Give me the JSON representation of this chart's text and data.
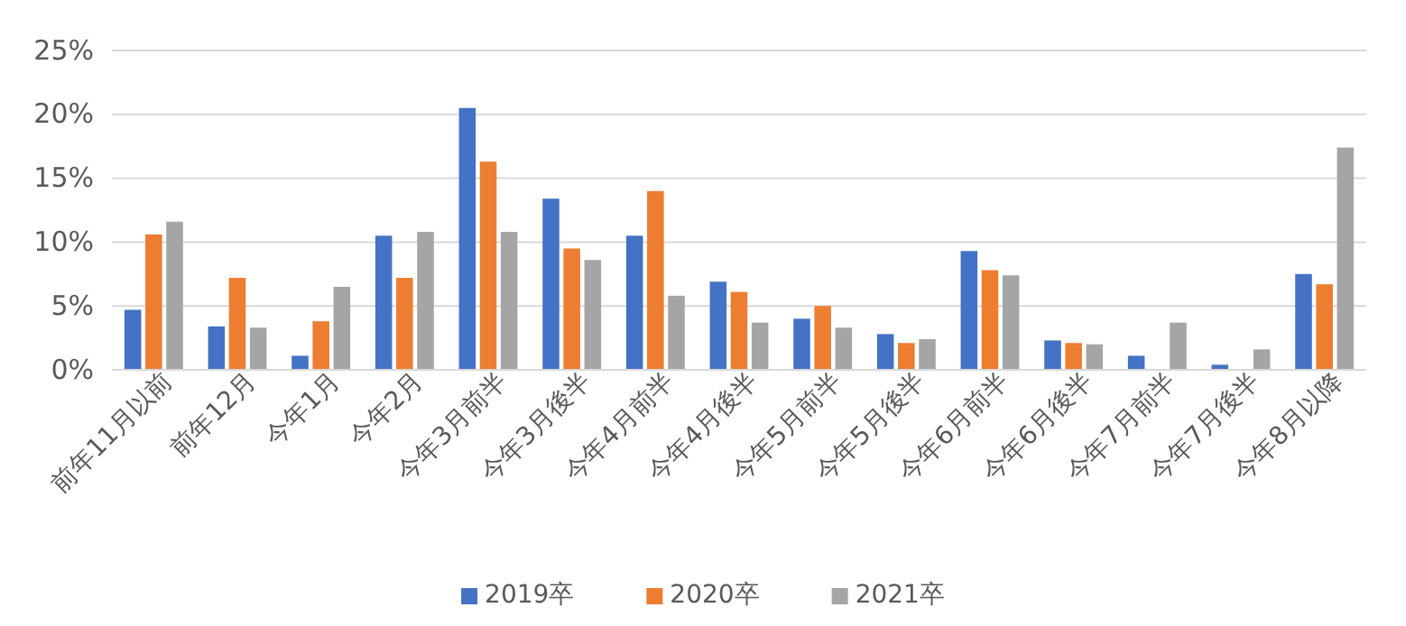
{
  "chart_data": {
    "type": "bar",
    "categories": [
      "前年11月以前",
      "前年12月",
      "今年1月",
      "今年2月",
      "今年3月前半",
      "今年3月後半",
      "今年4月前半",
      "今年4月後半",
      "今年5月前半",
      "今年5月後半",
      "今年6月前半",
      "今年6月後半",
      "今年7月前半",
      "今年7月後半",
      "今年8月以降"
    ],
    "series": [
      {
        "name": "2019卒",
        "color": "#4472c4",
        "values": [
          4.7,
          3.4,
          1.1,
          10.5,
          20.5,
          13.4,
          10.5,
          6.9,
          4.0,
          2.8,
          9.3,
          2.3,
          1.1,
          0.4,
          7.5
        ]
      },
      {
        "name": "2020卒",
        "color": "#ed7d31",
        "values": [
          10.6,
          7.2,
          3.8,
          7.2,
          16.3,
          9.5,
          14.0,
          6.1,
          5.0,
          2.1,
          7.8,
          2.1,
          0,
          0,
          6.7
        ]
      },
      {
        "name": "2021卒",
        "color": "#a5a5a5",
        "values": [
          11.6,
          3.3,
          6.5,
          10.8,
          10.8,
          8.6,
          5.8,
          3.7,
          3.3,
          2.4,
          7.4,
          2.0,
          3.7,
          1.6,
          17.4
        ]
      }
    ],
    "ylim": [
      0,
      25
    ],
    "yticks": [
      {
        "value": 0,
        "label": "0%"
      },
      {
        "value": 5,
        "label": "5%"
      },
      {
        "value": 10,
        "label": "10%"
      },
      {
        "value": 15,
        "label": "15%"
      },
      {
        "value": 20,
        "label": "20%"
      },
      {
        "value": 25,
        "label": "25%"
      }
    ],
    "grid": "y",
    "legend": "bottom"
  }
}
